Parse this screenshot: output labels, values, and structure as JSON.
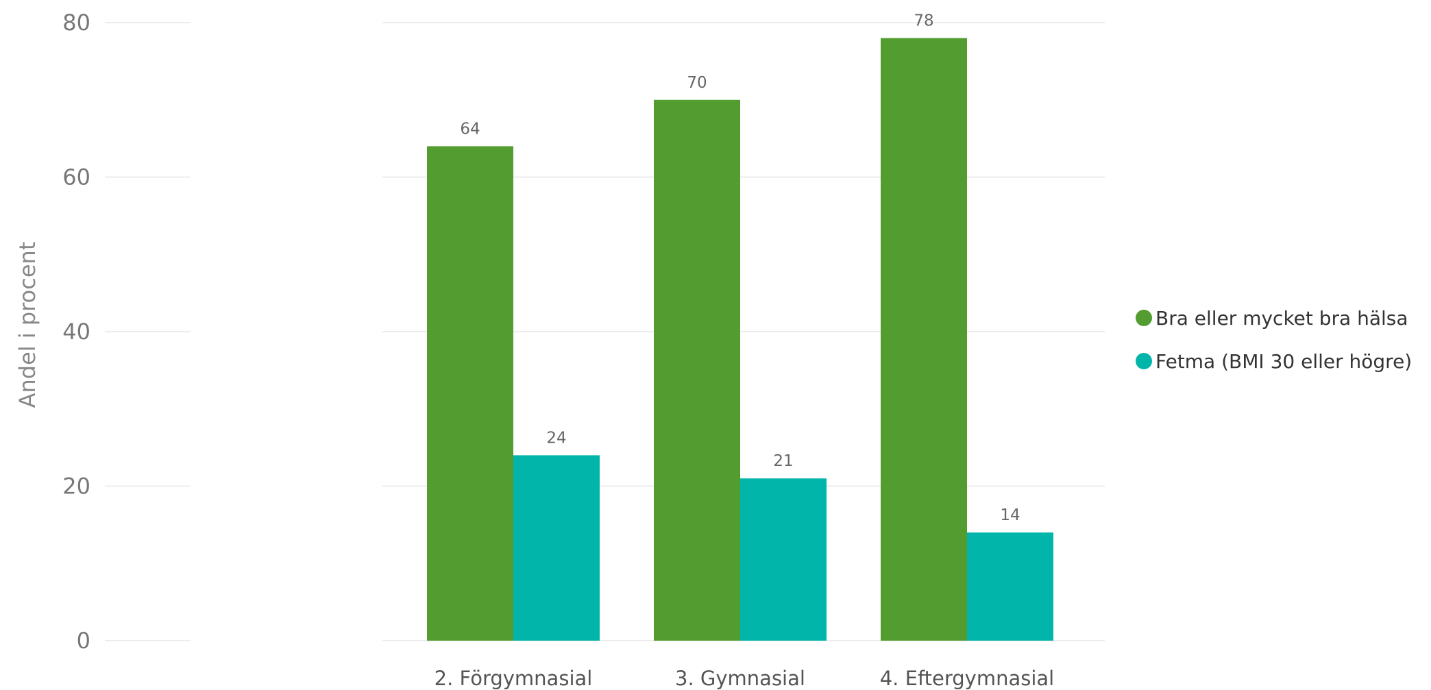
{
  "chart_data": {
    "type": "bar",
    "categories": [
      "2. Förgymnasial",
      "3. Gymnasial",
      "4. Eftergymnasial"
    ],
    "series": [
      {
        "name": "Bra eller mycket bra hälsa",
        "values": [
          64,
          70,
          78
        ],
        "color": "#529c30"
      },
      {
        "name": "Fetma (BMI 30 eller högre)",
        "values": [
          24,
          21,
          14
        ],
        "color": "#02b5ab"
      }
    ],
    "ylabel": "Andel i procent",
    "xlabel": "",
    "ylim": [
      0,
      80
    ],
    "yticks": [
      0,
      20,
      40,
      60,
      80
    ],
    "grid": true,
    "legend_position": "right"
  }
}
